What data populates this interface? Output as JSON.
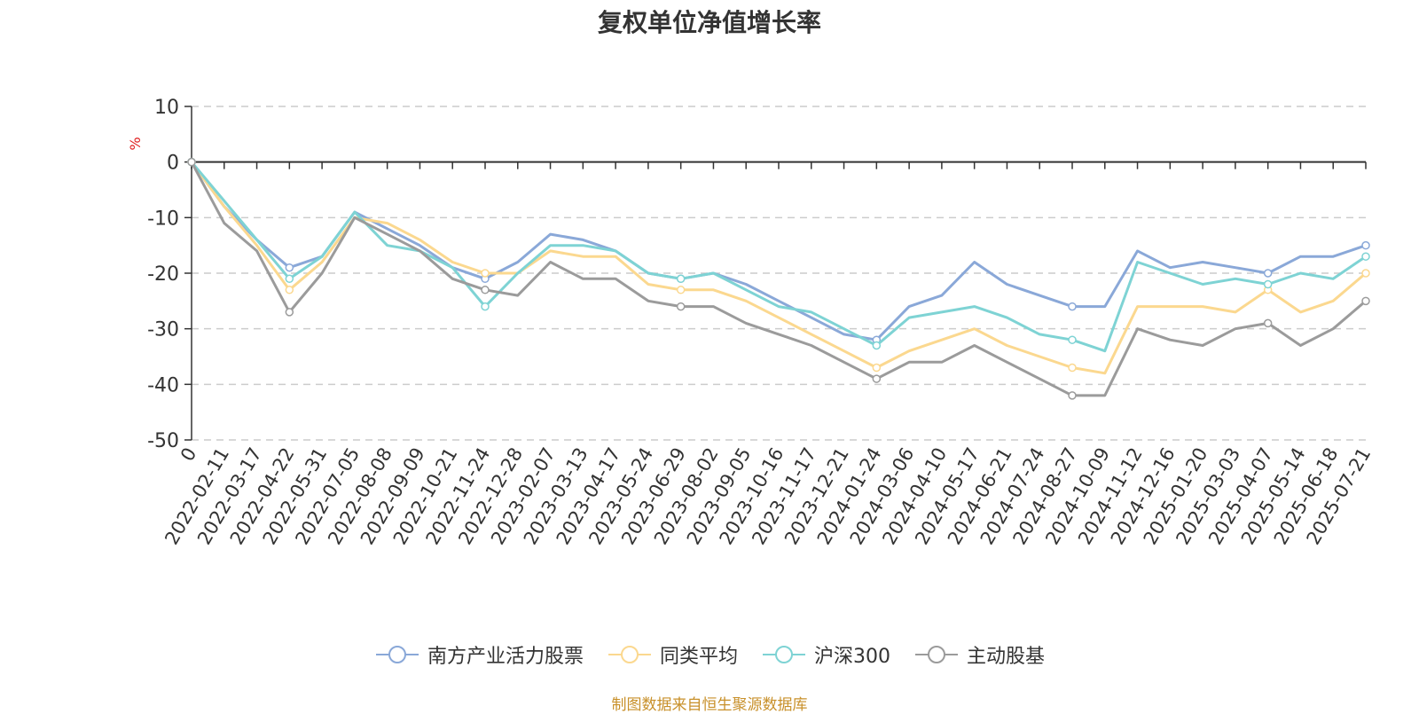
{
  "chart_data": {
    "type": "line",
    "title": "复权单位净值增长率",
    "ylabel": "%",
    "ylim": [
      -50,
      10
    ],
    "yticks": [
      10,
      0,
      -10,
      -20,
      -30,
      -40,
      -50
    ],
    "grid": true,
    "legend_position": "bottom",
    "x": [
      "0",
      "2022-02-11",
      "2022-03-17",
      "2022-04-22",
      "2022-05-31",
      "2022-07-05",
      "2022-08-08",
      "2022-09-09",
      "2022-10-21",
      "2022-11-24",
      "2022-12-28",
      "2023-02-07",
      "2023-03-13",
      "2023-04-17",
      "2023-05-24",
      "2023-06-29",
      "2023-08-02",
      "2023-09-05",
      "2023-10-16",
      "2023-11-17",
      "2023-12-21",
      "2024-01-24",
      "2024-03-06",
      "2024-04-10",
      "2024-05-17",
      "2024-06-21",
      "2024-07-24",
      "2024-08-27",
      "2024-10-09",
      "2024-11-12",
      "2024-12-16",
      "2025-01-20",
      "2025-03-03",
      "2025-04-07",
      "2025-05-14",
      "2025-06-18",
      "2025-07-21"
    ],
    "series": [
      {
        "name": "南方产业活力股票",
        "color": "#8aa8d8",
        "values": [
          0,
          -8,
          -14,
          -19,
          -17,
          -9,
          -12,
          -15,
          -19,
          -21,
          -18,
          -13,
          -14,
          -16,
          -20,
          -21,
          -20,
          -22,
          -25,
          -28,
          -31,
          -32,
          -26,
          -24,
          -18,
          -22,
          -24,
          -26,
          -26,
          -16,
          -19,
          -18,
          -19,
          -20,
          -17,
          -17,
          -15
        ]
      },
      {
        "name": "同类平均",
        "color": "#fbd88f",
        "values": [
          0,
          -8,
          -15,
          -23,
          -18,
          -10,
          -11,
          -14,
          -18,
          -20,
          -20,
          -16,
          -17,
          -17,
          -22,
          -23,
          -23,
          -25,
          -28,
          -31,
          -34,
          -37,
          -34,
          -32,
          -30,
          -33,
          -35,
          -37,
          -38,
          -26,
          -26,
          -26,
          -27,
          -23,
          -27,
          -25,
          -20
        ]
      },
      {
        "name": "沪深300",
        "color": "#7ed3d4",
        "values": [
          0,
          -7,
          -14,
          -21,
          -17,
          -9,
          -15,
          -16,
          -19,
          -26,
          -20,
          -15,
          -15,
          -16,
          -20,
          -21,
          -20,
          -23,
          -26,
          -27,
          -30,
          -33,
          -28,
          -27,
          -26,
          -28,
          -31,
          -32,
          -34,
          -18,
          -20,
          -22,
          -21,
          -22,
          -20,
          -21,
          -17
        ]
      },
      {
        "name": "主动股基",
        "color": "#9b9b9b",
        "values": [
          0,
          -11,
          -16,
          -27,
          -20,
          -10,
          -13,
          -16,
          -21,
          -23,
          -24,
          -18,
          -21,
          -21,
          -25,
          -26,
          -26,
          -29,
          -31,
          -33,
          -36,
          -39,
          -36,
          -36,
          -33,
          -36,
          -39,
          -42,
          -42,
          -30,
          -32,
          -33,
          -30,
          -29,
          -33,
          -30,
          -25
        ]
      }
    ]
  },
  "source_note": "制图数据来自恒生聚源数据库"
}
